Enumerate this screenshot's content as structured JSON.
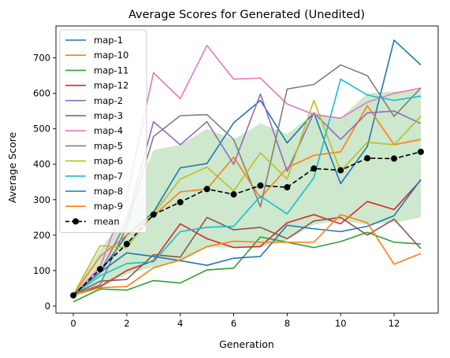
{
  "chart_data": {
    "type": "line",
    "title": "Average Scores for Generated (Unedited)",
    "xlabel": "Generation",
    "ylabel": "Average Score",
    "xlim": [
      -0.65,
      13.65
    ],
    "ylim": [
      -20,
      790
    ],
    "xticks": [
      0,
      2,
      4,
      6,
      8,
      10,
      12
    ],
    "yticks": [
      0,
      100,
      200,
      300,
      400,
      500,
      600,
      700
    ],
    "grid": false,
    "legend_position": "upper-left",
    "x": [
      0,
      1,
      2,
      3,
      4,
      5,
      6,
      7,
      8,
      9,
      10,
      11,
      12,
      13
    ],
    "series": [
      {
        "name": "map-1",
        "color": "#1f77b4",
        "values": [
          32,
          95,
          200,
          265,
          390,
          402,
          517,
          580,
          460,
          545,
          345,
          450,
          750,
          680
        ]
      },
      {
        "name": "map-10",
        "color": "#ff7f0e",
        "values": [
          32,
          140,
          200,
          255,
          322,
          330,
          420,
          305,
          390,
          425,
          435,
          565,
          455,
          470
        ]
      },
      {
        "name": "map-11",
        "color": "#2ca02c",
        "values": [
          12,
          48,
          45,
          72,
          65,
          102,
          107,
          195,
          180,
          165,
          182,
          208,
          180,
          175
        ]
      },
      {
        "name": "map-12",
        "color": "#d62728",
        "values": [
          32,
          55,
          100,
          128,
          232,
          190,
          165,
          168,
          235,
          258,
          232,
          295,
          272,
          355
        ]
      },
      {
        "name": "map-2",
        "color": "#9467bd",
        "values": [
          32,
          95,
          240,
          520,
          455,
          520,
          400,
          598,
          380,
          545,
          470,
          545,
          550,
          515
        ]
      },
      {
        "name": "map-3",
        "color": "#8c564b",
        "values": [
          32,
          70,
          75,
          145,
          138,
          250,
          215,
          222,
          190,
          240,
          250,
          200,
          245,
          162
        ]
      },
      {
        "name": "map-4",
        "color": "#e377c2",
        "values": [
          32,
          110,
          310,
          658,
          585,
          735,
          640,
          643,
          570,
          540,
          530,
          575,
          600,
          615
        ]
      },
      {
        "name": "map-5",
        "color": "#7f7f7f",
        "values": [
          32,
          60,
          225,
          478,
          537,
          540,
          470,
          280,
          612,
          625,
          680,
          650,
          535,
          615
        ]
      },
      {
        "name": "map-6",
        "color": "#bcbd22",
        "values": [
          32,
          170,
          165,
          260,
          358,
          392,
          325,
          432,
          358,
          580,
          380,
          462,
          455,
          535
        ]
      },
      {
        "name": "map-7",
        "color": "#17becf",
        "values": [
          32,
          85,
          120,
          125,
          210,
          222,
          225,
          310,
          260,
          362,
          640,
          595,
          580,
          592
        ]
      },
      {
        "name": "map-8",
        "color": "#1f77b4",
        "values": [
          32,
          95,
          150,
          140,
          128,
          115,
          135,
          140,
          228,
          218,
          210,
          225,
          255,
          357
        ]
      },
      {
        "name": "map-9",
        "color": "#ff7f0e",
        "values": [
          32,
          52,
          55,
          108,
          130,
          168,
          183,
          180,
          180,
          180,
          258,
          235,
          118,
          148
        ]
      }
    ],
    "mean": {
      "name": "mean",
      "color": "#000000",
      "values": [
        30,
        104,
        175,
        258,
        293,
        330,
        315,
        340,
        335,
        388,
        383,
        417,
        416,
        435
      ]
    },
    "band": {
      "color": "#2ca02c",
      "lower": [
        25,
        50,
        90,
        110,
        125,
        165,
        165,
        165,
        185,
        230,
        240,
        230,
        235,
        250
      ],
      "upper": [
        35,
        160,
        260,
        440,
        455,
        500,
        470,
        515,
        485,
        545,
        530,
        600,
        605,
        610
      ]
    }
  }
}
